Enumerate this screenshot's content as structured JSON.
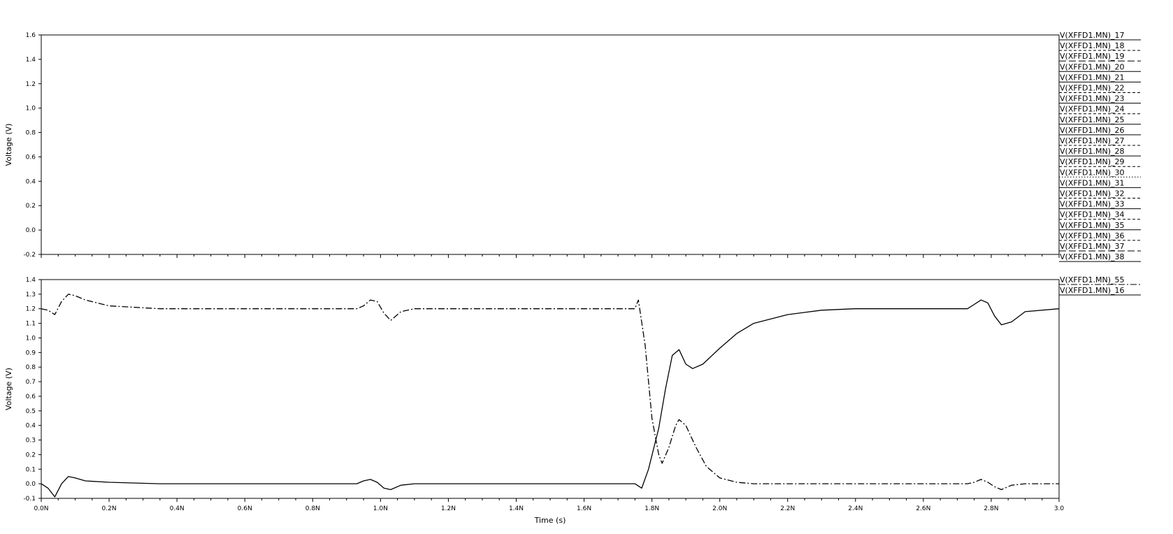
{
  "chart_data": [
    {
      "type": "line",
      "ylabel": "Voltage (V)",
      "ylim": [
        -0.2,
        1.6
      ],
      "yticks": [
        "1.6",
        "1.4",
        "1.2",
        "1.0",
        "0.8",
        "0.6",
        "0.4",
        "0.2",
        "0.0",
        "-0.2"
      ],
      "ytick_values": [
        1.6,
        1.4,
        1.2,
        1.0,
        0.8,
        0.6,
        0.4,
        0.2,
        0.0,
        -0.2
      ],
      "xlim": [
        0,
        3.0
      ],
      "legend_position": "right",
      "grid": false,
      "series": [
        {
          "name": "V(XFFD1.MN)_17",
          "dash": "solid"
        },
        {
          "name": "V(XFFD1.MN)_18",
          "dash": "dashed"
        },
        {
          "name": "V(XFFD1.MN)_19",
          "dash": "long-dash"
        },
        {
          "name": "V(XFFD1.MN)_20",
          "dash": "solid"
        },
        {
          "name": "V(XFFD1.MN)_21",
          "dash": "solid"
        },
        {
          "name": "V(XFFD1.MN)_22",
          "dash": "dashed"
        },
        {
          "name": "V(XFFD1.MN)_23",
          "dash": "solid"
        },
        {
          "name": "V(XFFD1.MN)_24",
          "dash": "dashed"
        },
        {
          "name": "V(XFFD1.MN)_25",
          "dash": "solid"
        },
        {
          "name": "V(XFFD1.MN)_26",
          "dash": "solid"
        },
        {
          "name": "V(XFFD1.MN)_27",
          "dash": "dashed"
        },
        {
          "name": "V(XFFD1.MN)_28",
          "dash": "solid"
        },
        {
          "name": "V(XFFD1.MN)_29",
          "dash": "dashed"
        },
        {
          "name": "V(XFFD1.MN)_30",
          "dash": "dotted"
        },
        {
          "name": "V(XFFD1.MN)_31",
          "dash": "solid"
        },
        {
          "name": "V(XFFD1.MN)_32",
          "dash": "dashed"
        },
        {
          "name": "V(XFFD1.MN)_33",
          "dash": "solid"
        },
        {
          "name": "V(XFFD1.MN)_34",
          "dash": "dashed"
        },
        {
          "name": "V(XFFD1.MN)_35",
          "dash": "solid"
        },
        {
          "name": "V(XFFD1.MN)_36",
          "dash": "dashed"
        },
        {
          "name": "V(XFFD1.MN)_37",
          "dash": "long-dash"
        },
        {
          "name": "V(XFFD1.MN)_38",
          "dash": "solid"
        }
      ]
    },
    {
      "type": "line",
      "ylabel": "Voltage (V)",
      "xlabel": "Time (s)",
      "ylim": [
        -0.1,
        1.4
      ],
      "yticks": [
        "1.4",
        "1.3",
        "1.2",
        "1.1",
        "1.0",
        "0.9",
        "0.8",
        "0.7",
        "0.6",
        "0.5",
        "0.4",
        "0.3",
        "0.2",
        "0.1",
        "0.0",
        "-0.1"
      ],
      "ytick_values": [
        1.4,
        1.3,
        1.2,
        1.1,
        1.0,
        0.9,
        0.8,
        0.7,
        0.6,
        0.5,
        0.4,
        0.3,
        0.2,
        0.1,
        0.0,
        -0.1
      ],
      "xlim": [
        0,
        3.0
      ],
      "xticks": [
        "0.0N",
        "0.2N",
        "0.4N",
        "0.6N",
        "0.8N",
        "1.0N",
        "1.2N",
        "1.4N",
        "1.6N",
        "1.8N",
        "2.0N",
        "2.2N",
        "2.4N",
        "2.6N",
        "2.8N",
        "3.0"
      ],
      "xtick_values": [
        0,
        0.2,
        0.4,
        0.6,
        0.8,
        1.0,
        1.2,
        1.4,
        1.6,
        1.8,
        2.0,
        2.2,
        2.4,
        2.6,
        2.8,
        3.0
      ],
      "legend_position": "right",
      "grid": false,
      "series": [
        {
          "name": "V(XFFD1.MN)_55",
          "dash": "dash-dot",
          "x": [
            0,
            0.02,
            0.04,
            0.06,
            0.08,
            0.1,
            0.13,
            0.2,
            0.35,
            0.93,
            0.95,
            0.97,
            0.99,
            1.01,
            1.03,
            1.06,
            1.1,
            1.75,
            1.76,
            1.78,
            1.8,
            1.82,
            1.83,
            1.85,
            1.87,
            1.88,
            1.9,
            1.93,
            1.96,
            2.0,
            2.05,
            2.1,
            2.2,
            2.73,
            2.75,
            2.77,
            2.79,
            2.81,
            2.83,
            2.86,
            2.9,
            3.0
          ],
          "y": [
            1.2,
            1.19,
            1.16,
            1.25,
            1.3,
            1.29,
            1.26,
            1.22,
            1.2,
            1.2,
            1.22,
            1.26,
            1.25,
            1.17,
            1.12,
            1.18,
            1.2,
            1.2,
            1.26,
            0.95,
            0.45,
            0.2,
            0.14,
            0.25,
            0.4,
            0.44,
            0.4,
            0.25,
            0.12,
            0.04,
            0.01,
            0.0,
            0.0,
            0.0,
            0.01,
            0.03,
            0.01,
            -0.02,
            -0.04,
            -0.01,
            0.0,
            0.0
          ]
        },
        {
          "name": "V(XFFD1.MN)_16",
          "dash": "solid",
          "x": [
            0,
            0.02,
            0.04,
            0.06,
            0.08,
            0.1,
            0.13,
            0.2,
            0.35,
            0.93,
            0.95,
            0.97,
            0.99,
            1.01,
            1.03,
            1.06,
            1.1,
            1.75,
            1.77,
            1.79,
            1.82,
            1.84,
            1.86,
            1.88,
            1.9,
            1.92,
            1.95,
            2.0,
            2.05,
            2.1,
            2.2,
            2.3,
            2.4,
            2.73,
            2.75,
            2.77,
            2.79,
            2.81,
            2.83,
            2.86,
            2.9,
            3.0
          ],
          "y": [
            0.0,
            -0.03,
            -0.09,
            0.0,
            0.05,
            0.04,
            0.02,
            0.01,
            0.0,
            0.0,
            0.02,
            0.03,
            0.01,
            -0.03,
            -0.04,
            -0.01,
            0.0,
            0.0,
            -0.03,
            0.1,
            0.38,
            0.65,
            0.88,
            0.92,
            0.82,
            0.79,
            0.82,
            0.93,
            1.03,
            1.1,
            1.16,
            1.19,
            1.2,
            1.2,
            1.23,
            1.26,
            1.24,
            1.15,
            1.09,
            1.11,
            1.18,
            1.2
          ]
        }
      ]
    }
  ]
}
